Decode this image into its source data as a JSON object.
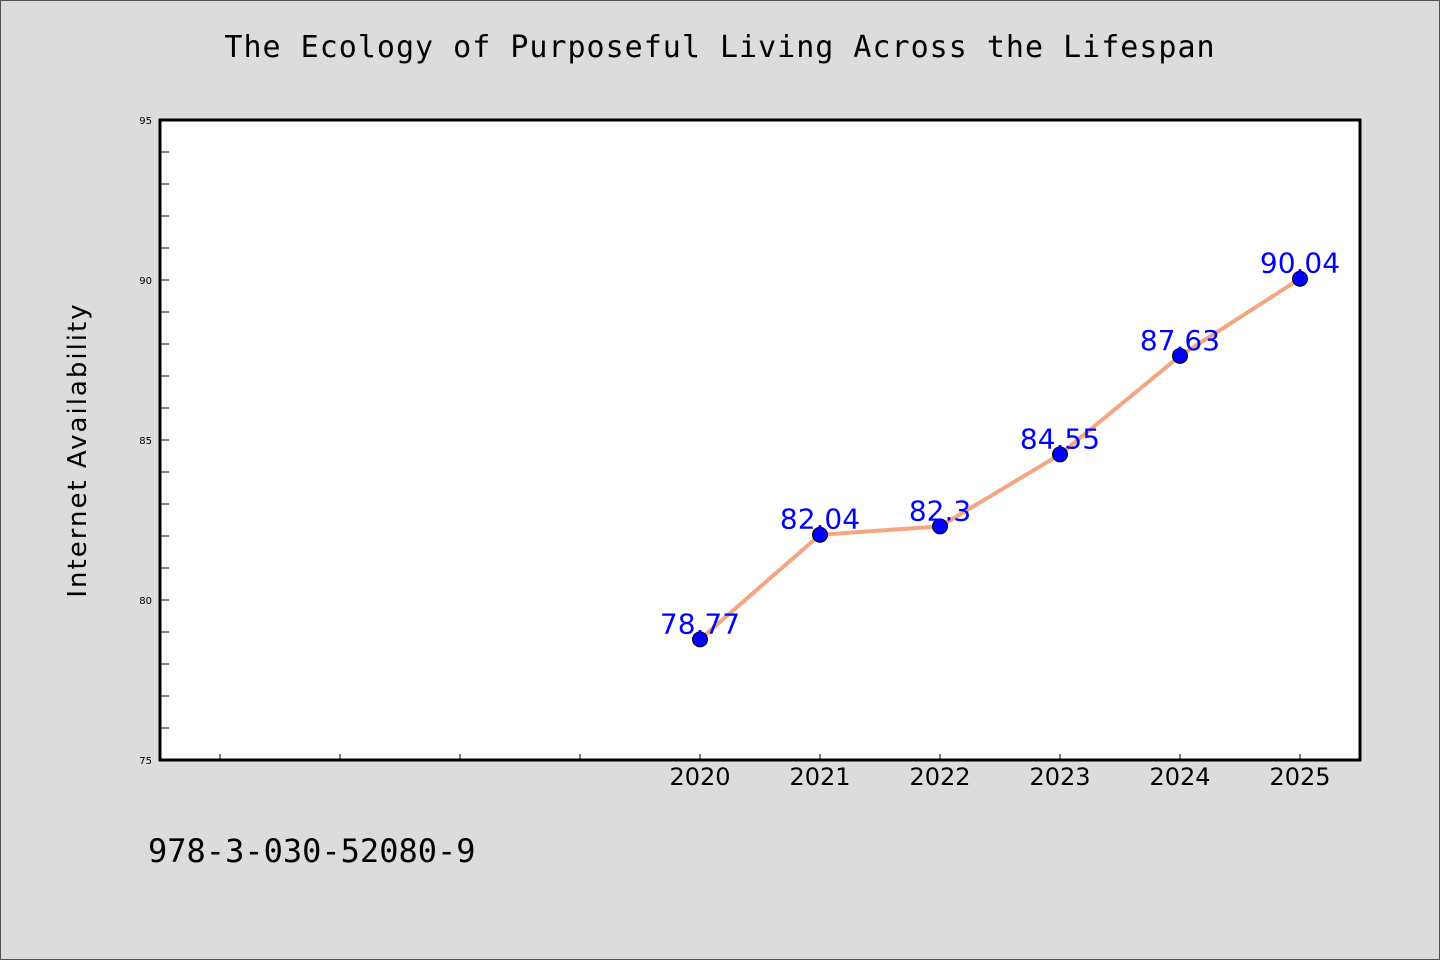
{
  "title": "The Ecology of Purposeful Living Across the Lifespan",
  "footer": "978-3-030-52080-9",
  "colors": {
    "background": "#dcdcdc",
    "plot_background": "#ffffff",
    "line": "#f4a582",
    "marker": "#0000ff",
    "label": "#0000ff"
  },
  "chart_data": {
    "type": "line",
    "ylabel": "Internet Availability",
    "xlabel": "",
    "x": [
      2020,
      2021,
      2022,
      2023,
      2024,
      2025
    ],
    "xlim": [
      2015.5,
      2025.5
    ],
    "ylim": [
      75,
      95
    ],
    "yticks": [
      75,
      80,
      85,
      90,
      95
    ],
    "grid": false,
    "series": [
      {
        "values": [
          78.77,
          82.04,
          82.3,
          84.55,
          87.63,
          90.04
        ],
        "labels": [
          "78.77",
          "82.04",
          "82.3",
          "84.55",
          "87.63",
          "90.04"
        ]
      }
    ]
  }
}
